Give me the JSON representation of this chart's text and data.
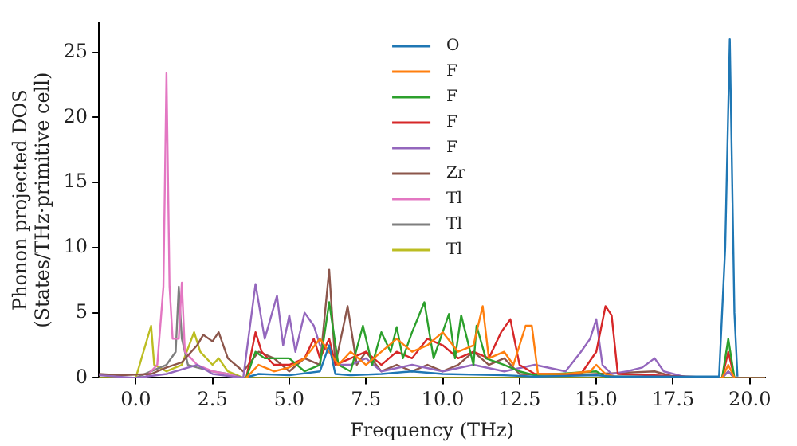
{
  "chart_data": {
    "type": "line",
    "xlabel": "Frequency (THz)",
    "ylabel": "Phonon projected DOS\n(States/THz·primitive cell)",
    "xlim": [
      -1.2,
      20.5
    ],
    "ylim": [
      0,
      27.3
    ],
    "xticks": [
      {
        "value": 0,
        "label": "0.0"
      },
      {
        "value": 2.5,
        "label": "2.5"
      },
      {
        "value": 5,
        "label": "5.0"
      },
      {
        "value": 7.5,
        "label": "7.5"
      },
      {
        "value": 10,
        "label": "10.0"
      },
      {
        "value": 12.5,
        "label": "12.5"
      },
      {
        "value": 15,
        "label": "15.0"
      },
      {
        "value": 17.5,
        "label": "17.5"
      },
      {
        "value": 20,
        "label": "20.0"
      }
    ],
    "yticks": [
      0,
      5,
      10,
      15,
      20,
      25
    ],
    "grid": false,
    "legend": "top",
    "marker": "none",
    "line_style": "solid",
    "series": [
      {
        "name": "O",
        "color": "#1f77b4",
        "x": [
          3.7,
          4,
          5,
          6,
          6.3,
          6.5,
          7,
          8,
          9,
          10,
          12,
          13,
          15,
          15.5,
          19,
          19.2,
          19.35,
          19.5,
          19.6
        ],
        "values": [
          0.1,
          0.3,
          0.2,
          0.5,
          2.5,
          0.3,
          0.2,
          0.3,
          0.5,
          0.3,
          0.2,
          0.1,
          0.2,
          0.1,
          0.1,
          10,
          26,
          5,
          0.1
        ]
      },
      {
        "name": "F",
        "color": "#ff7f0e",
        "x": [
          3.6,
          4,
          4.5,
          5,
          5.5,
          6,
          6.3,
          6.6,
          7,
          7.5,
          8,
          8.5,
          9,
          9.5,
          10,
          10.5,
          11,
          11.3,
          11.5,
          12,
          12.3,
          12.7,
          12.9,
          13.1,
          14,
          14.8,
          15,
          15.3,
          15.6,
          19.1,
          19.3,
          19.5
        ],
        "values": [
          0,
          1,
          0.5,
          0.8,
          1.5,
          3,
          2,
          1,
          2,
          1,
          2,
          3,
          2,
          2.5,
          3.5,
          2,
          2.5,
          5.5,
          1.5,
          2,
          1,
          4,
          4,
          0.3,
          0.3,
          0.5,
          1,
          0.3,
          0.1,
          0,
          1,
          0
        ]
      },
      {
        "name": "F",
        "color": "#2ca02c",
        "x": [
          3.6,
          3.9,
          4.2,
          5,
          5.5,
          6,
          6.3,
          6.6,
          7,
          7.4,
          7.7,
          8,
          8.3,
          8.5,
          8.7,
          9,
          9.4,
          9.7,
          10.2,
          10.4,
          10.6,
          11,
          11.1,
          11.4,
          12,
          12.5,
          13,
          15,
          15.3,
          19.1,
          19.3,
          19.5
        ],
        "values": [
          0,
          2,
          1.5,
          1.5,
          0.5,
          1,
          5.8,
          1,
          0.5,
          4,
          1,
          3.5,
          2,
          3.9,
          1.5,
          3.5,
          5.8,
          1.5,
          4.9,
          1.5,
          4.8,
          1,
          4,
          1.5,
          1,
          0.5,
          0.2,
          0.5,
          0.1,
          0,
          3,
          0
        ]
      },
      {
        "name": "F",
        "color": "#d62728",
        "x": [
          3.6,
          3.9,
          4.1,
          4.5,
          5,
          5.5,
          5.8,
          6,
          6.3,
          6.5,
          7,
          7.5,
          8,
          8.5,
          9,
          9.5,
          10,
          10.5,
          11,
          11.5,
          11.9,
          12.2,
          12.5,
          13,
          14.5,
          15,
          15.3,
          15.5,
          15.7,
          19.1,
          19.3,
          19.5
        ],
        "values": [
          0,
          3.5,
          2,
          1,
          1,
          1.5,
          3,
          1.5,
          3,
          1,
          1.5,
          2,
          1,
          2,
          1.5,
          3,
          2.5,
          1.5,
          2,
          1.5,
          3.5,
          4.5,
          1,
          0.3,
          0.3,
          2,
          5.5,
          4.8,
          0.3,
          0,
          2,
          0
        ]
      },
      {
        "name": "F",
        "color": "#9467bd",
        "x": [
          -1.2,
          0,
          1,
          2,
          2.5,
          3.5,
          3.9,
          4.2,
          4.6,
          4.8,
          5,
          5.2,
          5.5,
          5.8,
          6,
          6.3,
          6.6,
          7,
          7.5,
          8,
          9,
          10,
          11,
          12,
          13,
          14,
          14.5,
          14.8,
          15,
          15.2,
          15.5,
          16,
          16.5,
          16.9,
          17.2,
          18,
          19.1,
          19.3,
          19.5
        ],
        "values": [
          0.2,
          0,
          0.3,
          1,
          0.3,
          0,
          7.2,
          3,
          6.3,
          2.5,
          4.8,
          2,
          5,
          4,
          2.5,
          2,
          1,
          1,
          1.5,
          0.5,
          1,
          0.5,
          1,
          0.5,
          1,
          0.5,
          2,
          3,
          4.5,
          1,
          0.3,
          0.5,
          0.8,
          1.5,
          0.5,
          0,
          0,
          0.5,
          0
        ]
      },
      {
        "name": "Zr",
        "color": "#8c564b",
        "x": [
          -1.2,
          -0.5,
          0.5,
          1,
          1.5,
          2,
          2.2,
          2.5,
          2.7,
          3,
          3.5,
          4,
          4.5,
          5,
          5.5,
          6,
          6.3,
          6.5,
          6.9,
          7.2,
          7.5,
          8,
          8.5,
          9,
          9.5,
          10,
          10.5,
          11,
          11.5,
          12,
          12.5,
          14,
          16.9,
          17.5,
          19.1,
          19.3,
          19.5,
          20.5
        ],
        "values": [
          0.3,
          0.2,
          0.3,
          0.8,
          1.2,
          2.5,
          3.3,
          2.8,
          3.5,
          1.5,
          0.5,
          2,
          1.5,
          0.5,
          1.5,
          1,
          8.3,
          1,
          5.5,
          1,
          2,
          0.5,
          1,
          0.5,
          1,
          0.5,
          1,
          2,
          1,
          1.5,
          0.3,
          0.2,
          0.5,
          0.1,
          0,
          0.5,
          0,
          0
        ]
      },
      {
        "name": "Tl",
        "color": "#e377c2",
        "x": [
          0.3,
          0.7,
          0.9,
          1,
          1.1,
          1.2,
          1.4,
          1.5,
          1.6,
          2,
          2.5,
          3,
          3.4
        ],
        "values": [
          0,
          1,
          7,
          23.4,
          7,
          3,
          3,
          7.3,
          2,
          1,
          0.5,
          0.3,
          0
        ]
      },
      {
        "name": "Tl",
        "color": "#7f7f7f",
        "x": [
          0,
          0.5,
          1,
          1.3,
          1.4,
          1.5,
          1.7,
          2,
          2.5,
          3,
          3.5
        ],
        "values": [
          0,
          0.5,
          1,
          2,
          7,
          3,
          1,
          0.8,
          0.5,
          0.3,
          0
        ]
      },
      {
        "name": "Tl",
        "color": "#bcbd22",
        "x": [
          -1.2,
          0,
          0.5,
          0.6,
          1,
          1.5,
          1.9,
          2.1,
          2.5,
          2.7,
          3,
          3.5,
          20.5
        ],
        "values": [
          0,
          0,
          4,
          1,
          0.5,
          1,
          3.5,
          2,
          1,
          1.5,
          0.5,
          0,
          0
        ]
      }
    ]
  }
}
